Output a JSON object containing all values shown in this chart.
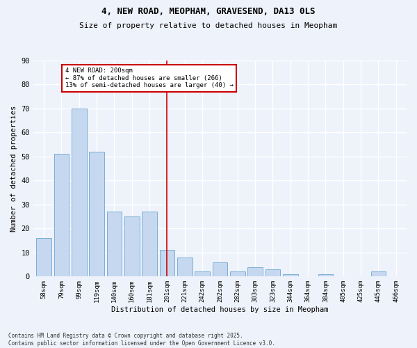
{
  "title": "4, NEW ROAD, MEOPHAM, GRAVESEND, DA13 0LS",
  "subtitle": "Size of property relative to detached houses in Meopham",
  "xlabel": "Distribution of detached houses by size in Meopham",
  "ylabel": "Number of detached properties",
  "categories": [
    "58sqm",
    "79sqm",
    "99sqm",
    "119sqm",
    "140sqm",
    "160sqm",
    "181sqm",
    "201sqm",
    "221sqm",
    "242sqm",
    "262sqm",
    "282sqm",
    "303sqm",
    "323sqm",
    "344sqm",
    "364sqm",
    "384sqm",
    "405sqm",
    "425sqm",
    "445sqm",
    "466sqm"
  ],
  "values": [
    16,
    51,
    70,
    52,
    27,
    25,
    27,
    11,
    8,
    2,
    6,
    2,
    4,
    3,
    1,
    0,
    1,
    0,
    0,
    2,
    0
  ],
  "bar_color": "#c5d8f0",
  "bar_edge_color": "#7aafd4",
  "vline_x": 7,
  "vline_color": "#cc0000",
  "annotation_text": "4 NEW ROAD: 200sqm\n← 87% of detached houses are smaller (266)\n13% of semi-detached houses are larger (40) →",
  "annotation_box_color": "#cc0000",
  "ylim": [
    0,
    90
  ],
  "yticks": [
    0,
    10,
    20,
    30,
    40,
    50,
    60,
    70,
    80,
    90
  ],
  "background_color": "#eef2fb",
  "grid_color": "#ffffff",
  "footer": "Contains HM Land Registry data © Crown copyright and database right 2025.\nContains public sector information licensed under the Open Government Licence v3.0."
}
